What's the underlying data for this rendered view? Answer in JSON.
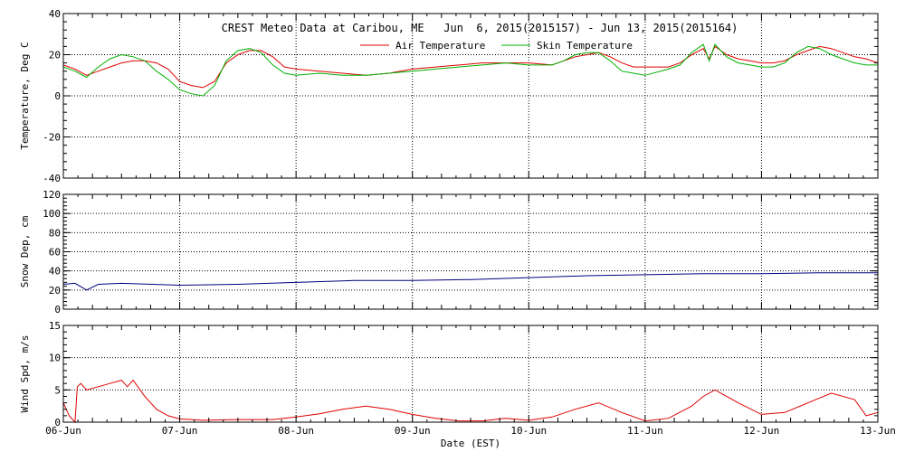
{
  "title": "CREST Meteo Data at Caribou, ME   Jun  6, 2015(2015157) - Jun 13, 2015(2015164)",
  "xlabel": "Date (EST)",
  "colors": {
    "air": "#e00000",
    "skin": "#00b000",
    "snow": "#00007f",
    "wind": "#e00000",
    "axis": "#000000",
    "grid": "#000000"
  },
  "chart_data": [
    {
      "type": "line",
      "ylabel": "Temperature, Deg C",
      "ylim": [
        -40,
        40
      ],
      "yticks": [
        "40",
        "20",
        "0",
        "-20",
        "-40"
      ],
      "xticks": [
        "06-Jun",
        "07-Jun",
        "08-Jun",
        "09-Jun",
        "10-Jun",
        "11-Jun",
        "12-Jun",
        "13-Jun"
      ],
      "x_unit": "days since 06-Jun 00:00",
      "xlim": [
        0,
        7
      ],
      "grid": "dotted",
      "legend": "top-center",
      "series": [
        {
          "name": "Air Temperature",
          "x": [
            0,
            0.1,
            0.2,
            0.3,
            0.4,
            0.5,
            0.6,
            0.7,
            0.8,
            0.9,
            1.0,
            1.1,
            1.2,
            1.3,
            1.4,
            1.5,
            1.6,
            1.7,
            1.8,
            1.9,
            2.0,
            2.2,
            2.4,
            2.6,
            2.8,
            3.0,
            3.2,
            3.4,
            3.6,
            3.8,
            4.0,
            4.2,
            4.3,
            4.4,
            4.5,
            4.6,
            4.7,
            4.8,
            4.9,
            5.0,
            5.2,
            5.3,
            5.4,
            5.5,
            5.55,
            5.6,
            5.7,
            5.8,
            5.9,
            6.0,
            6.1,
            6.2,
            6.3,
            6.4,
            6.5,
            6.6,
            6.7,
            6.8,
            6.9,
            7.0
          ],
          "y": [
            15,
            13,
            10,
            12,
            14,
            16,
            17,
            17,
            16,
            13,
            7,
            5,
            4,
            7,
            16,
            20,
            22,
            22,
            19,
            14,
            13,
            12,
            11,
            10,
            11,
            13,
            14,
            15,
            16,
            16,
            16,
            15,
            17,
            19,
            20,
            21,
            19,
            16,
            14,
            14,
            14,
            16,
            20,
            23,
            18,
            24,
            20,
            18,
            17,
            16,
            16,
            17,
            20,
            22,
            24,
            23,
            21,
            19,
            18,
            16
          ]
        },
        {
          "name": "Skin Temperature",
          "x": [
            0,
            0.1,
            0.2,
            0.3,
            0.4,
            0.5,
            0.6,
            0.7,
            0.8,
            0.9,
            1.0,
            1.1,
            1.2,
            1.3,
            1.4,
            1.5,
            1.6,
            1.7,
            1.8,
            1.9,
            2.0,
            2.2,
            2.4,
            2.6,
            2.8,
            3.0,
            3.2,
            3.4,
            3.6,
            3.8,
            4.0,
            4.2,
            4.3,
            4.4,
            4.5,
            4.6,
            4.7,
            4.8,
            4.9,
            5.0,
            5.2,
            5.3,
            5.4,
            5.5,
            5.55,
            5.6,
            5.7,
            5.8,
            5.9,
            6.0,
            6.1,
            6.2,
            6.3,
            6.4,
            6.5,
            6.6,
            6.7,
            6.8,
            6.9,
            7.0
          ],
          "y": [
            14,
            12,
            9,
            14,
            18,
            20,
            19,
            17,
            12,
            8,
            3,
            1,
            0,
            5,
            17,
            22,
            23,
            21,
            15,
            11,
            10,
            11,
            10,
            10,
            11,
            12,
            13,
            14,
            15,
            16,
            15,
            15,
            17,
            20,
            21,
            21,
            17,
            12,
            11,
            10,
            13,
            15,
            21,
            25,
            17,
            25,
            19,
            16,
            15,
            14,
            14,
            16,
            21,
            24,
            23,
            20,
            18,
            16,
            15,
            15
          ]
        }
      ]
    },
    {
      "type": "line",
      "ylabel": "Snow Dep, cm",
      "ylim": [
        0,
        120
      ],
      "yticks": [
        "120",
        "100",
        "80",
        "60",
        "40",
        "20",
        "0"
      ],
      "x_unit": "days since 06-Jun 00:00",
      "xlim": [
        0,
        7
      ],
      "grid": "dotted",
      "series": [
        {
          "x": [
            0,
            0.1,
            0.2,
            0.3,
            0.5,
            1.0,
            1.5,
            2.0,
            2.5,
            3.0,
            3.5,
            4.0,
            4.5,
            5.0,
            5.5,
            6.0,
            6.5,
            7.0
          ],
          "y": [
            26,
            27,
            20,
            26,
            27,
            25,
            26,
            28,
            30,
            30,
            31,
            33,
            35,
            36,
            37,
            37,
            38,
            38
          ]
        }
      ]
    },
    {
      "type": "line",
      "ylabel": "Wind Spd, m/s",
      "ylim": [
        0,
        15
      ],
      "yticks": [
        "15",
        "10",
        "5",
        "0"
      ],
      "x_unit": "days since 06-Jun 00:00",
      "xlim": [
        0,
        7
      ],
      "grid": "dotted",
      "series": [
        {
          "x": [
            0,
            0.05,
            0.1,
            0.12,
            0.15,
            0.2,
            0.3,
            0.4,
            0.5,
            0.55,
            0.6,
            0.7,
            0.8,
            0.9,
            1.0,
            1.2,
            1.5,
            1.8,
            2.0,
            2.2,
            2.4,
            2.6,
            2.8,
            3.0,
            3.2,
            3.4,
            3.6,
            3.8,
            4.0,
            4.2,
            4.4,
            4.6,
            4.8,
            5.0,
            5.2,
            5.4,
            5.5,
            5.6,
            5.8,
            6.0,
            6.2,
            6.4,
            6.6,
            6.8,
            6.9,
            7.0
          ],
          "y": [
            3,
            1,
            0,
            5.5,
            6,
            5,
            5.5,
            6,
            6.5,
            5.5,
            6.5,
            4,
            2,
            1,
            0.5,
            0.3,
            0.4,
            0.4,
            0.8,
            1.3,
            2,
            2.5,
            2,
            1.2,
            0.6,
            0.2,
            0.2,
            0.6,
            0.3,
            0.8,
            2,
            3,
            1.5,
            0.2,
            0.6,
            2.5,
            4,
            5,
            3,
            1.2,
            1.5,
            3,
            4.5,
            3.5,
            1,
            1.5
          ]
        }
      ]
    }
  ]
}
